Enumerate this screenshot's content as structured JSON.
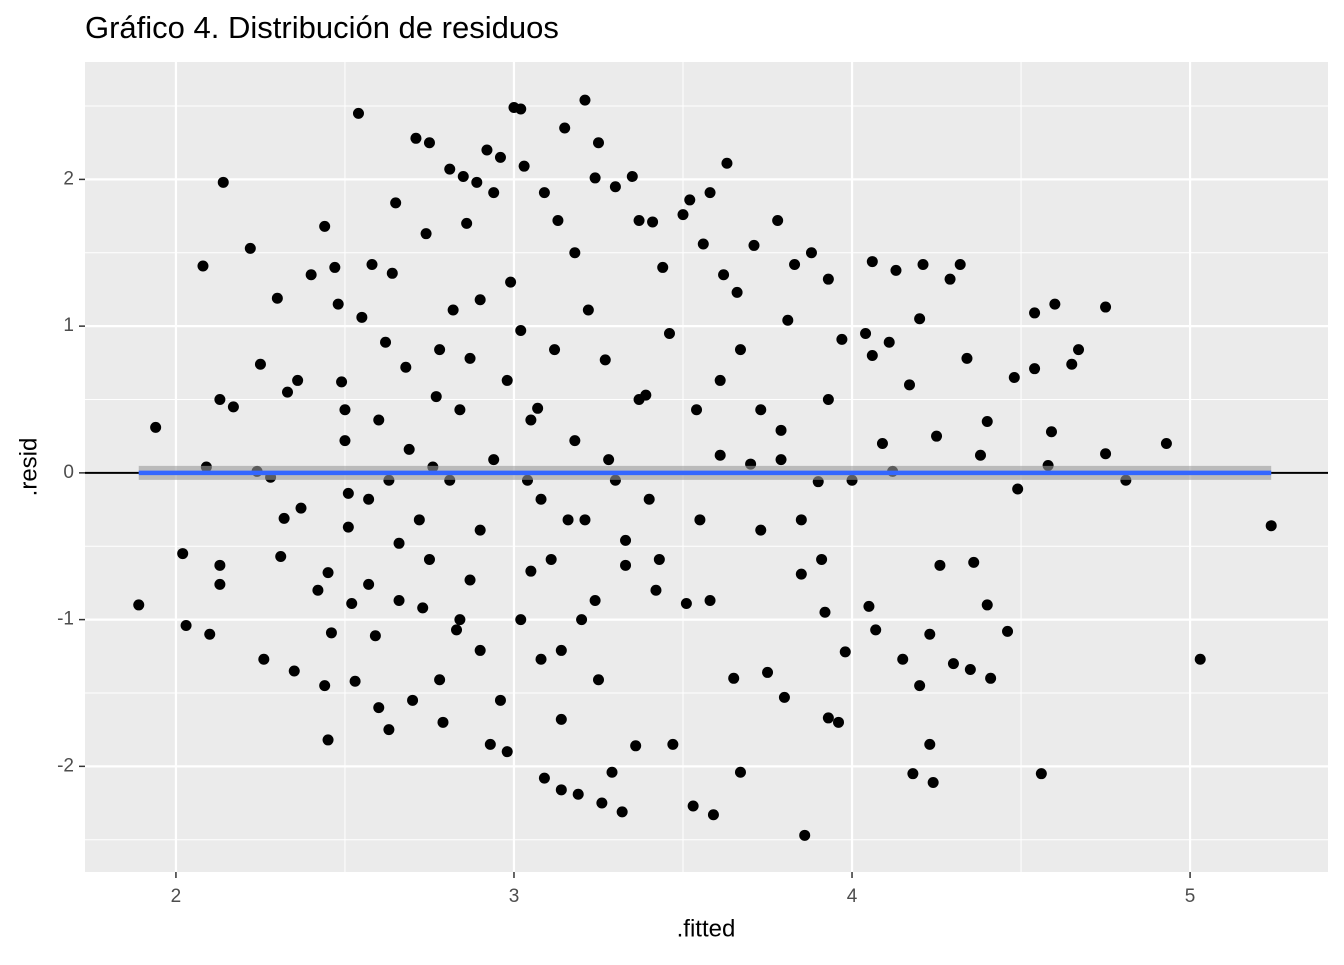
{
  "chart_data": {
    "type": "scatter",
    "title": "Gráfico 4. Distribución de residuos",
    "x_label": ".fitted",
    "y_label": ".resid",
    "xlim": [
      1.731,
      5.408
    ],
    "ylim": [
      -2.72,
      2.8
    ],
    "xticks": [
      2,
      3,
      4,
      5
    ],
    "yticks": [
      -2,
      -1,
      0,
      1,
      2
    ],
    "xminor": [
      2.5,
      3.5,
      4.5
    ],
    "yminor": [
      -2.5,
      -1.5,
      -0.5,
      0.5,
      1.5,
      2.5
    ],
    "grid": true,
    "hline": {
      "value": 0,
      "color": "#000000"
    },
    "smooth": {
      "color": "#3366ff",
      "x": [
        1.89,
        5.24
      ],
      "y": [
        0,
        0
      ]
    },
    "series": [
      {
        "color": "#000000",
        "x": [
          1.89,
          1.94,
          2.02,
          2.03,
          2.08,
          2.09,
          2.1,
          2.13,
          2.13,
          2.13,
          2.14,
          2.17,
          2.22,
          2.24,
          2.25,
          2.26,
          2.28,
          2.3,
          2.31,
          2.32,
          2.33,
          2.35,
          2.36,
          2.37,
          2.4,
          2.42,
          2.44,
          2.45,
          2.44,
          2.45,
          2.46,
          2.47,
          2.48,
          2.49,
          2.5,
          2.5,
          2.51,
          2.51,
          2.52,
          2.53,
          2.54,
          2.55,
          2.57,
          2.58,
          2.59,
          2.6,
          2.62,
          2.63,
          2.64,
          2.65,
          2.66,
          2.68,
          2.7,
          2.71,
          2.73,
          2.74,
          2.75,
          2.76,
          2.77,
          2.79,
          2.81,
          2.82,
          2.83,
          2.85,
          2.86,
          2.87,
          2.89,
          2.9,
          2.92,
          2.93,
          2.94,
          2.96,
          2.98,
          2.99,
          3.0,
          3.02,
          3.03,
          3.04,
          3.05,
          3.07,
          3.09,
          3.09,
          3.12,
          3.13,
          3.14,
          3.15,
          3.16,
          3.18,
          3.19,
          3.21,
          3.22,
          3.24,
          3.25,
          3.26,
          3.28,
          3.29,
          3.3,
          3.32,
          3.33,
          3.35,
          3.36,
          3.37,
          3.39,
          3.41,
          3.42,
          3.44,
          3.46,
          3.47,
          3.5,
          3.51,
          3.52,
          3.53,
          3.54,
          3.56,
          3.58,
          3.59,
          3.61,
          3.62,
          3.63,
          3.65,
          3.66,
          3.67,
          3.7,
          3.71,
          3.73,
          3.75,
          3.78,
          3.79,
          3.8,
          3.81,
          3.83,
          3.85,
          3.86,
          3.88,
          3.9,
          3.92,
          3.93,
          3.93,
          3.96,
          3.97,
          3.98,
          4.0,
          4.04,
          4.05,
          4.06,
          4.06,
          4.07,
          4.09,
          4.11,
          4.12,
          4.13,
          4.15,
          4.17,
          4.18,
          4.2,
          4.2,
          4.21,
          4.23,
          4.23,
          4.24,
          4.25,
          4.26,
          4.29,
          4.3,
          4.32,
          4.34,
          4.35,
          4.36,
          4.38,
          4.4,
          4.4,
          4.41,
          4.46,
          4.48,
          4.49,
          4.54,
          4.54,
          4.56,
          4.58,
          4.59,
          4.6,
          4.65,
          4.67,
          4.75,
          4.75,
          4.81,
          4.93,
          5.03,
          5.24,
          2.78,
          2.84,
          2.9,
          2.94,
          2.98,
          3.02,
          3.05,
          3.08,
          3.11,
          3.14,
          3.18,
          3.21,
          3.24,
          3.27,
          3.3,
          3.33,
          3.37,
          3.4,
          3.43,
          2.87,
          2.9,
          2.96,
          3.02,
          3.08,
          3.14,
          3.2,
          3.25,
          2.72,
          2.69,
          2.75,
          2.81,
          2.84,
          2.78,
          2.63,
          2.6,
          2.66,
          2.57,
          3.55,
          3.58,
          3.61,
          3.67,
          3.73,
          3.79,
          3.85,
          3.91,
          3.93
        ],
        "y": [
          -0.9,
          0.31,
          -0.55,
          -1.04,
          1.41,
          0.04,
          -1.1,
          0.5,
          -0.63,
          -0.76,
          1.98,
          0.45,
          1.53,
          0.01,
          0.74,
          -1.27,
          -0.03,
          1.19,
          -0.57,
          -0.31,
          0.55,
          -1.35,
          0.63,
          -0.24,
          1.35,
          -0.8,
          1.68,
          -1.82,
          -1.45,
          -0.68,
          -1.09,
          1.4,
          1.15,
          0.62,
          0.43,
          0.22,
          -0.14,
          -0.37,
          -0.89,
          -1.42,
          2.45,
          1.06,
          -0.76,
          1.42,
          -1.11,
          -1.6,
          0.89,
          -1.75,
          1.36,
          1.84,
          -0.48,
          0.72,
          -1.55,
          2.28,
          -0.92,
          1.63,
          2.25,
          0.04,
          0.52,
          -1.7,
          2.07,
          1.11,
          -1.07,
          2.02,
          1.7,
          0.78,
          1.98,
          -0.39,
          2.2,
          -1.85,
          1.91,
          2.15,
          -1.9,
          1.3,
          2.49,
          2.48,
          2.09,
          -0.05,
          -0.67,
          0.44,
          -2.08,
          1.91,
          0.84,
          1.72,
          -2.16,
          2.35,
          -0.32,
          1.5,
          -2.19,
          2.54,
          1.11,
          2.01,
          2.25,
          -2.25,
          0.09,
          -2.04,
          1.95,
          -2.31,
          -0.63,
          2.02,
          -1.86,
          1.72,
          0.53,
          1.71,
          -0.8,
          1.4,
          0.95,
          -1.85,
          1.76,
          -0.89,
          1.86,
          -2.27,
          0.43,
          1.56,
          1.91,
          -2.33,
          0.12,
          1.35,
          2.11,
          -1.4,
          1.23,
          -2.04,
          0.06,
          1.55,
          0.43,
          -1.36,
          1.72,
          0.09,
          -1.53,
          1.04,
          1.42,
          -0.69,
          -2.47,
          1.5,
          -0.06,
          -0.95,
          -1.67,
          1.32,
          -1.7,
          0.91,
          -1.22,
          -0.05,
          0.95,
          -0.91,
          1.44,
          0.8,
          -1.07,
          0.2,
          0.89,
          0.01,
          1.38,
          -1.27,
          0.6,
          -2.05,
          1.05,
          -1.45,
          1.42,
          -1.1,
          -1.85,
          -2.11,
          0.25,
          -0.63,
          1.32,
          -1.3,
          1.42,
          0.78,
          -1.34,
          -0.61,
          0.12,
          0.35,
          -0.9,
          -1.4,
          -1.08,
          0.65,
          -0.11,
          1.09,
          0.71,
          -2.05,
          0.05,
          0.28,
          1.15,
          0.74,
          0.84,
          1.13,
          0.13,
          -0.05,
          0.2,
          -1.27,
          -0.36,
          0.84,
          0.43,
          1.18,
          0.09,
          0.63,
          0.97,
          0.36,
          -0.18,
          -0.59,
          -1.21,
          0.22,
          -0.32,
          -0.87,
          0.77,
          -0.05,
          -0.46,
          0.5,
          -0.18,
          -0.59,
          -0.73,
          -1.21,
          -1.55,
          -1.0,
          -1.27,
          -1.68,
          -1.0,
          -1.41,
          -0.32,
          0.16,
          -0.59,
          -0.05,
          -1.0,
          -1.41,
          -0.05,
          0.36,
          -0.87,
          -0.18,
          -0.32,
          -0.87,
          0.63,
          0.84,
          -0.39,
          0.29,
          -0.32,
          -0.59,
          0.5
        ]
      }
    ]
  }
}
